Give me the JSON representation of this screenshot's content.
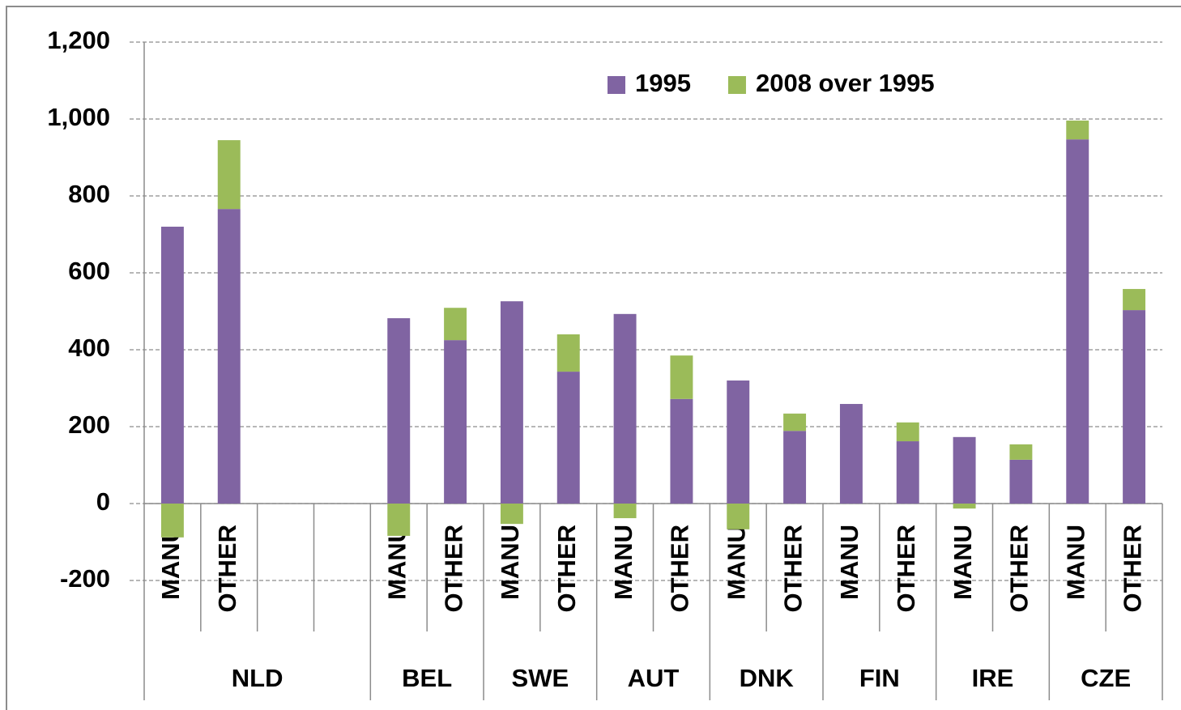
{
  "chart_data": {
    "type": "stacked_bar",
    "groups": [
      {
        "name": "NLD",
        "categories": [
          "MANU",
          "OTHER",
          null,
          null
        ]
      },
      {
        "name": "BEL",
        "categories": [
          "MANU",
          "OTHER"
        ]
      },
      {
        "name": "SWE",
        "categories": [
          "MANU",
          "OTHER"
        ]
      },
      {
        "name": "AUT",
        "categories": [
          "MANU",
          "OTHER"
        ]
      },
      {
        "name": "DNK",
        "categories": [
          "MANU",
          "OTHER"
        ]
      },
      {
        "name": "FIN",
        "categories": [
          "MANU",
          "OTHER"
        ]
      },
      {
        "name": "IRE",
        "categories": [
          "MANU",
          "OTHER"
        ]
      },
      {
        "name": "CZE",
        "categories": [
          "MANU",
          "OTHER"
        ]
      }
    ],
    "series": [
      {
        "name": "1995",
        "color": "#8064a2",
        "values": [
          720,
          766,
          null,
          null,
          482,
          425,
          526,
          343,
          493,
          272,
          320,
          189,
          259,
          162,
          173,
          114,
          947,
          503
        ]
      },
      {
        "name": "2008 over 1995",
        "color": "#9bbb59",
        "values": [
          -88,
          179,
          null,
          null,
          -84,
          84,
          -53,
          97,
          -38,
          113,
          -67,
          45,
          0,
          49,
          -13,
          40,
          49,
          55
        ]
      }
    ],
    "ylim": [
      -200,
      1200
    ],
    "yticks": [
      -200,
      0,
      200,
      400,
      600,
      800,
      {
        "value": 1000,
        "label": "1,000"
      },
      {
        "value": 1200,
        "label": "1,200"
      }
    ],
    "grid": true,
    "legend": "upper-right"
  }
}
